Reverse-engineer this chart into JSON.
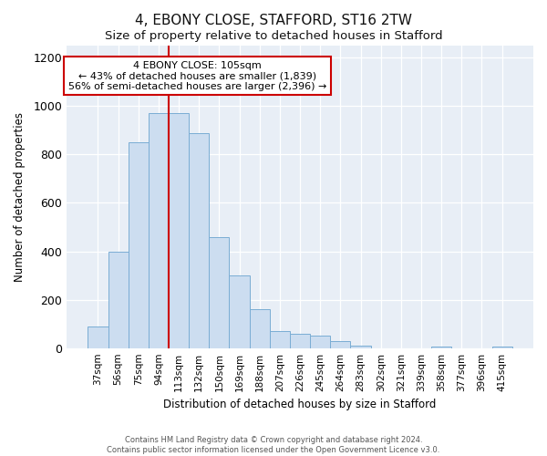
{
  "title": "4, EBONY CLOSE, STAFFORD, ST16 2TW",
  "subtitle": "Size of property relative to detached houses in Stafford",
  "xlabel": "Distribution of detached houses by size in Stafford",
  "ylabel": "Number of detached properties",
  "bar_labels": [
    "37sqm",
    "56sqm",
    "75sqm",
    "94sqm",
    "113sqm",
    "132sqm",
    "150sqm",
    "169sqm",
    "188sqm",
    "207sqm",
    "226sqm",
    "245sqm",
    "264sqm",
    "283sqm",
    "302sqm",
    "321sqm",
    "339sqm",
    "358sqm",
    "377sqm",
    "396sqm",
    "415sqm"
  ],
  "bar_values": [
    90,
    400,
    850,
    970,
    970,
    890,
    460,
    300,
    160,
    70,
    60,
    50,
    30,
    10,
    0,
    0,
    0,
    5,
    0,
    0,
    5
  ],
  "bar_color": "#ccddf0",
  "bar_edge_color": "#7aadd4",
  "vline_x_idx": 4,
  "vline_color": "#cc0000",
  "annotation_title": "4 EBONY CLOSE: 105sqm",
  "annotation_line1": "← 43% of detached houses are smaller (1,839)",
  "annotation_line2": "56% of semi-detached houses are larger (2,396) →",
  "annotation_box_color": "#ffffff",
  "annotation_box_edge": "#cc0000",
  "ylim": [
    0,
    1250
  ],
  "yticks": [
    0,
    200,
    400,
    600,
    800,
    1000,
    1200
  ],
  "footer1": "Contains HM Land Registry data © Crown copyright and database right 2024.",
  "footer2": "Contains public sector information licensed under the Open Government Licence v3.0.",
  "bg_color": "#ffffff",
  "plot_bg_color": "#e8eef6"
}
